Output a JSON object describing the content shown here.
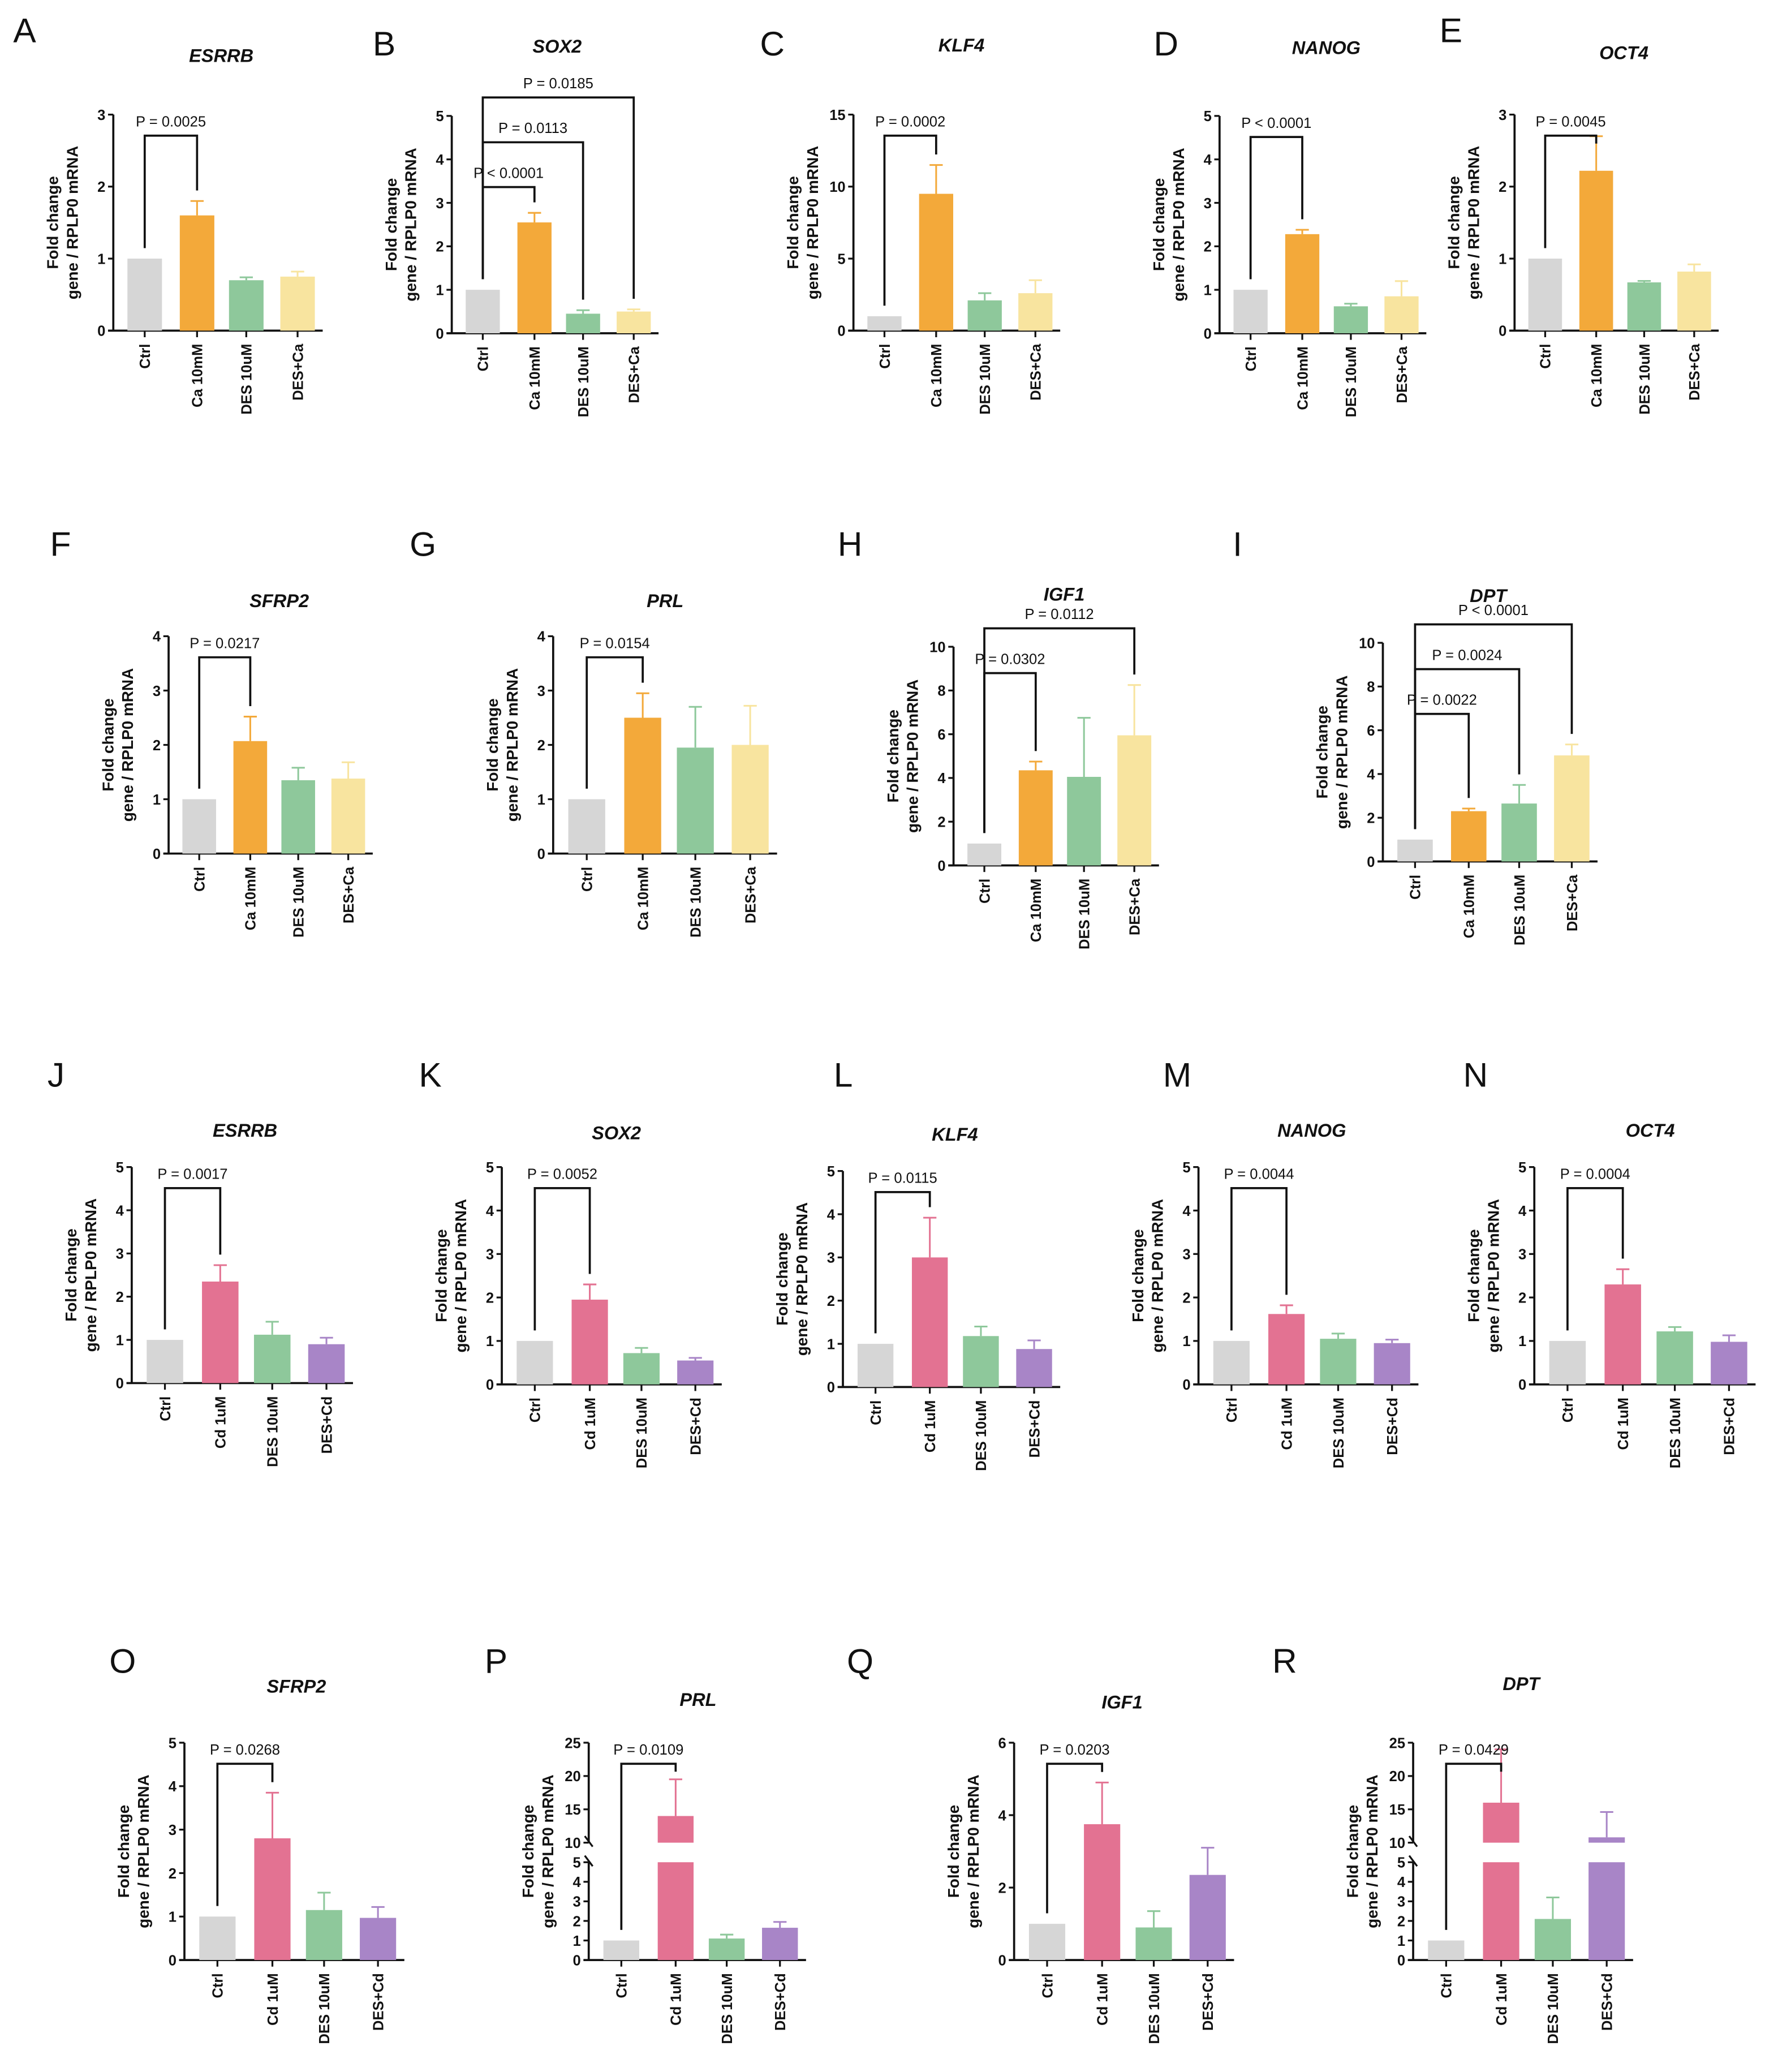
{
  "ylabel_lines": [
    "Fold change",
    "gene / RPLP0 mRNA"
  ],
  "colors": {
    "Ctrl": "#d6d6d6",
    "Ca 10mM": "#f3a93a",
    "DES 10uM": "#8ec89b",
    "DES+Ca": "#f8e49f",
    "Cd 1uM": "#e37292",
    "DES+Cd": "#a885c7",
    "axis": "#111111"
  },
  "chart_data": [
    {
      "panel": "A",
      "type": "bar",
      "title": "ESRRB",
      "categories": [
        "Ctrl",
        "Ca 10mM",
        "DES 10uM",
        "DES+Ca"
      ],
      "values": [
        1,
        1.6,
        0.7,
        0.75
      ],
      "errors": [
        0,
        0.2,
        0.04,
        0.07
      ],
      "ylim": [
        0,
        3
      ],
      "yticks": [
        0,
        1,
        2,
        3
      ],
      "comparisons": [
        {
          "from": 0,
          "to": 1,
          "label": "P = 0.0025"
        }
      ]
    },
    {
      "panel": "B",
      "type": "bar",
      "title": "SOX2",
      "categories": [
        "Ctrl",
        "Ca 10mM",
        "DES 10uM",
        "DES+Ca"
      ],
      "values": [
        1,
        2.55,
        0.45,
        0.5
      ],
      "errors": [
        0,
        0.22,
        0.08,
        0.05
      ],
      "ylim": [
        0,
        5
      ],
      "yticks": [
        0,
        1,
        2,
        3,
        4,
        5
      ],
      "comparisons": [
        {
          "from": 0,
          "to": 1,
          "label": "P < 0.0001"
        },
        {
          "from": 0,
          "to": 2,
          "label": "P = 0.0113"
        },
        {
          "from": 0,
          "to": 3,
          "label": "P = 0.0185"
        }
      ]
    },
    {
      "panel": "C",
      "type": "bar",
      "title": "KLF4",
      "categories": [
        "Ctrl",
        "Ca 10mM",
        "DES 10uM",
        "DES+Ca"
      ],
      "values": [
        1,
        9.5,
        2.1,
        2.6
      ],
      "errors": [
        0,
        2.0,
        0.5,
        0.9
      ],
      "ylim": [
        0,
        15
      ],
      "yticks": [
        0,
        5,
        10,
        15
      ],
      "comparisons": [
        {
          "from": 0,
          "to": 1,
          "label": "P = 0.0002"
        }
      ]
    },
    {
      "panel": "D",
      "type": "bar",
      "title": "NANOG",
      "categories": [
        "Ctrl",
        "Ca 10mM",
        "DES 10uM",
        "DES+Ca"
      ],
      "values": [
        1,
        2.28,
        0.62,
        0.85
      ],
      "errors": [
        0,
        0.1,
        0.06,
        0.35
      ],
      "ylim": [
        0,
        5
      ],
      "yticks": [
        0,
        1,
        2,
        3,
        4,
        5
      ],
      "comparisons": [
        {
          "from": 0,
          "to": 1,
          "label": "P < 0.0001"
        }
      ]
    },
    {
      "panel": "E",
      "type": "bar",
      "title": "OCT4",
      "categories": [
        "Ctrl",
        "Ca 10mM",
        "DES 10uM",
        "DES+Ca"
      ],
      "values": [
        1,
        2.22,
        0.67,
        0.82
      ],
      "errors": [
        0,
        0.48,
        0.02,
        0.1
      ],
      "ylim": [
        0,
        3
      ],
      "yticks": [
        0,
        1,
        2,
        3
      ],
      "comparisons": [
        {
          "from": 0,
          "to": 1,
          "label": "P = 0.0045"
        }
      ]
    },
    {
      "panel": "F",
      "type": "bar",
      "title": "SFRP2",
      "categories": [
        "Ctrl",
        "Ca 10mM",
        "DES 10uM",
        "DES+Ca"
      ],
      "values": [
        1,
        2.07,
        1.35,
        1.38
      ],
      "errors": [
        0,
        0.45,
        0.23,
        0.3
      ],
      "ylim": [
        0,
        4
      ],
      "yticks": [
        0,
        1,
        2,
        3,
        4
      ],
      "comparisons": [
        {
          "from": 0,
          "to": 1,
          "label": "P = 0.0217"
        }
      ]
    },
    {
      "panel": "G",
      "type": "bar",
      "title": "PRL",
      "categories": [
        "Ctrl",
        "Ca 10mM",
        "DES 10uM",
        "DES+Ca"
      ],
      "values": [
        1,
        2.5,
        1.95,
        2.0
      ],
      "errors": [
        0,
        0.45,
        0.75,
        0.72
      ],
      "ylim": [
        0,
        4
      ],
      "yticks": [
        0,
        1,
        2,
        3,
        4
      ],
      "comparisons": [
        {
          "from": 0,
          "to": 1,
          "label": "P = 0.0154"
        }
      ]
    },
    {
      "panel": "H",
      "type": "bar",
      "title": "IGF1",
      "categories": [
        "Ctrl",
        "Ca 10mM",
        "DES 10uM",
        "DES+Ca"
      ],
      "values": [
        1,
        4.35,
        4.05,
        5.95
      ],
      "errors": [
        0,
        0.4,
        2.7,
        2.3
      ],
      "ylim": [
        0,
        10
      ],
      "yticks": [
        0,
        2,
        4,
        6,
        8,
        10
      ],
      "comparisons": [
        {
          "from": 0,
          "to": 1,
          "label": "P = 0.0302"
        },
        {
          "from": 0,
          "to": 3,
          "label": "P = 0.0112"
        }
      ]
    },
    {
      "panel": "I",
      "type": "bar",
      "title": "DPT",
      "categories": [
        "Ctrl",
        "Ca 10mM",
        "DES 10uM",
        "DES+Ca"
      ],
      "values": [
        1,
        2.3,
        2.65,
        4.85
      ],
      "errors": [
        0,
        0.12,
        0.85,
        0.5
      ],
      "ylim": [
        0,
        10
      ],
      "yticks": [
        0,
        2,
        4,
        6,
        8,
        10
      ],
      "comparisons": [
        {
          "from": 0,
          "to": 1,
          "label": "P = 0.0022"
        },
        {
          "from": 0,
          "to": 2,
          "label": "P = 0.0024"
        },
        {
          "from": 0,
          "to": 3,
          "label": "P < 0.0001"
        }
      ]
    },
    {
      "panel": "J",
      "type": "bar",
      "title": "ESRRB",
      "categories": [
        "Ctrl",
        "Cd 1uM",
        "DES 10uM",
        "DES+Cd"
      ],
      "values": [
        1,
        2.35,
        1.12,
        0.9
      ],
      "errors": [
        0,
        0.38,
        0.3,
        0.15
      ],
      "ylim": [
        0,
        5
      ],
      "yticks": [
        0,
        1,
        2,
        3,
        4,
        5
      ],
      "comparisons": [
        {
          "from": 0,
          "to": 1,
          "label": "P = 0.0017"
        }
      ]
    },
    {
      "panel": "K",
      "type": "bar",
      "title": "SOX2",
      "categories": [
        "Ctrl",
        "Cd 1uM",
        "DES 10uM",
        "DES+Cd"
      ],
      "values": [
        1,
        1.95,
        0.72,
        0.55
      ],
      "errors": [
        0,
        0.35,
        0.12,
        0.06
      ],
      "ylim": [
        0,
        5
      ],
      "yticks": [
        0,
        1,
        2,
        3,
        4,
        5
      ],
      "comparisons": [
        {
          "from": 0,
          "to": 1,
          "label": "P = 0.0052"
        }
      ]
    },
    {
      "panel": "L",
      "type": "bar",
      "title": "KLF4",
      "categories": [
        "Ctrl",
        "Cd 1uM",
        "DES 10uM",
        "DES+Cd"
      ],
      "values": [
        1,
        3.0,
        1.18,
        0.88
      ],
      "errors": [
        0,
        0.92,
        0.22,
        0.2
      ],
      "ylim": [
        0,
        5
      ],
      "yticks": [
        0,
        1,
        2,
        3,
        4,
        5
      ],
      "comparisons": [
        {
          "from": 0,
          "to": 1,
          "label": "P = 0.0115"
        }
      ]
    },
    {
      "panel": "M",
      "type": "bar",
      "title": "NANOG",
      "categories": [
        "Ctrl",
        "Cd 1uM",
        "DES 10uM",
        "DES+Cd"
      ],
      "values": [
        1,
        1.62,
        1.05,
        0.95
      ],
      "errors": [
        0,
        0.2,
        0.12,
        0.08
      ],
      "ylim": [
        0,
        5
      ],
      "yticks": [
        0,
        1,
        2,
        3,
        4,
        5
      ],
      "comparisons": [
        {
          "from": 0,
          "to": 1,
          "label": "P = 0.0044"
        }
      ]
    },
    {
      "panel": "N",
      "type": "bar",
      "title": "OCT4",
      "categories": [
        "Ctrl",
        "Cd 1uM",
        "DES 10uM",
        "DES+Cd"
      ],
      "values": [
        1,
        2.3,
        1.22,
        0.98
      ],
      "errors": [
        0,
        0.35,
        0.1,
        0.15
      ],
      "ylim": [
        0,
        5
      ],
      "yticks": [
        0,
        1,
        2,
        3,
        4,
        5
      ],
      "comparisons": [
        {
          "from": 0,
          "to": 1,
          "label": "P = 0.0004"
        }
      ]
    },
    {
      "panel": "O",
      "type": "bar",
      "title": "SFRP2",
      "categories": [
        "Ctrl",
        "Cd 1uM",
        "DES 10uM",
        "DES+Cd"
      ],
      "values": [
        1,
        2.8,
        1.15,
        0.97
      ],
      "errors": [
        0,
        1.05,
        0.4,
        0.25
      ],
      "ylim": [
        0,
        5
      ],
      "yticks": [
        0,
        1,
        2,
        3,
        4,
        5
      ],
      "comparisons": [
        {
          "from": 0,
          "to": 1,
          "label": "P = 0.0268"
        }
      ]
    },
    {
      "panel": "P",
      "type": "bar",
      "title": "PRL",
      "categories": [
        "Ctrl",
        "Cd 1uM",
        "DES 10uM",
        "DES+Cd"
      ],
      "values": [
        1,
        14,
        1.1,
        1.65
      ],
      "errors": [
        0,
        5.5,
        0.2,
        0.3
      ],
      "ylim": [
        0,
        25
      ],
      "axis_break": [
        5,
        10
      ],
      "yticks": [
        0,
        1,
        2,
        3,
        4,
        5,
        10,
        15,
        20,
        25
      ],
      "comparisons": [
        {
          "from": 0,
          "to": 1,
          "label": "P = 0.0109"
        }
      ]
    },
    {
      "panel": "Q",
      "type": "bar",
      "title": "IGF1",
      "categories": [
        "Ctrl",
        "Cd 1uM",
        "DES 10uM",
        "DES+Cd"
      ],
      "values": [
        1,
        3.75,
        0.9,
        2.35
      ],
      "errors": [
        0,
        1.15,
        0.45,
        0.75
      ],
      "ylim": [
        0,
        6
      ],
      "yticks": [
        0,
        2,
        4,
        6
      ],
      "comparisons": [
        {
          "from": 0,
          "to": 1,
          "label": "P = 0.0203"
        }
      ]
    },
    {
      "panel": "R",
      "type": "bar",
      "title": "DPT",
      "categories": [
        "Ctrl",
        "Cd 1uM",
        "DES 10uM",
        "DES+Cd"
      ],
      "values": [
        1,
        16,
        2.1,
        10.8
      ],
      "errors": [
        0,
        8,
        1.1,
        3.8
      ],
      "ylim": [
        0,
        25
      ],
      "axis_break": [
        5,
        10
      ],
      "yticks": [
        0,
        1,
        2,
        3,
        4,
        5,
        10,
        15,
        20,
        25
      ],
      "comparisons": [
        {
          "from": 0,
          "to": 1,
          "label": "P = 0.0429"
        }
      ]
    }
  ]
}
